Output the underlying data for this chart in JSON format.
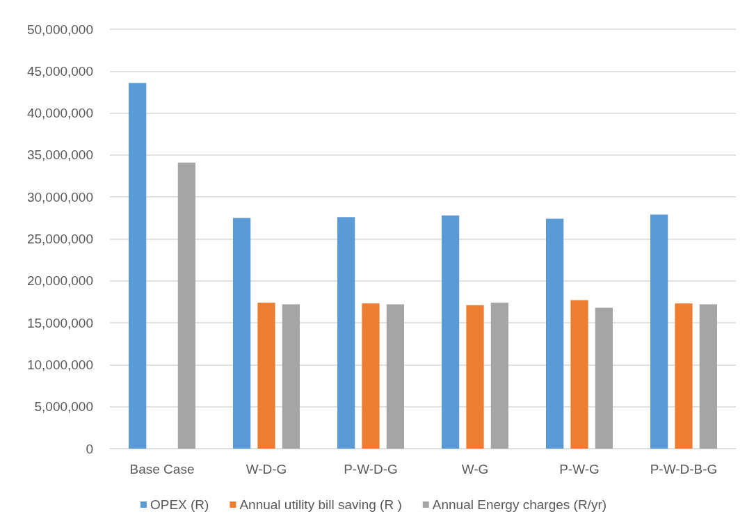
{
  "chart_data": {
    "type": "bar",
    "categories": [
      "Base Case",
      "W-D-G",
      "P-W-D-G",
      "W-G",
      "P-W-G",
      "P-W-D-B-G"
    ],
    "series": [
      {
        "name": "OPEX (R)",
        "color": "#5b9bd5",
        "values": [
          43600000,
          27500000,
          27600000,
          27800000,
          27400000,
          27900000
        ]
      },
      {
        "name": "Annual utility bill saving (R )",
        "color": "#ed7d31",
        "values": [
          null,
          17400000,
          17300000,
          17100000,
          17700000,
          17300000
        ]
      },
      {
        "name": "Annual Energy charges (R/yr)",
        "color": "#a5a5a5",
        "values": [
          34100000,
          17200000,
          17200000,
          17400000,
          16800000,
          17200000
        ]
      }
    ],
    "ylim": [
      0,
      50000000
    ],
    "yticks": [
      0,
      {
        "value": 5000000,
        "label": "5,000,000"
      },
      {
        "value": 10000000,
        "label": "10,000,000"
      },
      {
        "value": 15000000,
        "label": "15,000,000"
      },
      {
        "value": 20000000,
        "label": "20,000,000"
      },
      {
        "value": 25000000,
        "label": "25,000,000"
      },
      {
        "value": 30000000,
        "label": "30,000,000"
      },
      {
        "value": 35000000,
        "label": "35,000,000"
      },
      {
        "value": 40000000,
        "label": "40,000,000"
      },
      {
        "value": 45000000,
        "label": "45,000,000"
      },
      {
        "value": 50000000,
        "label": "50,000,000"
      }
    ],
    "grid": "y",
    "legend": "bottom"
  }
}
